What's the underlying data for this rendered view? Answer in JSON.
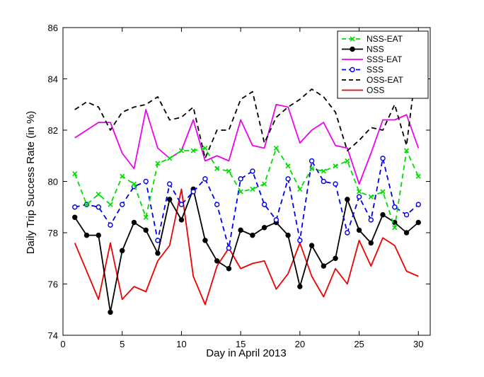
{
  "chart_data": {
    "type": "line",
    "title": "",
    "xlabel": "Day in April 2013",
    "ylabel": "Daily Trip Success Rate (in %)",
    "xlim": [
      0,
      31
    ],
    "ylim": [
      74,
      86
    ],
    "xticks": [
      0,
      5,
      10,
      15,
      20,
      25,
      30
    ],
    "yticks": [
      74,
      76,
      78,
      80,
      82,
      84,
      86
    ],
    "legend_position": "top-right",
    "x": [
      1,
      2,
      3,
      4,
      5,
      6,
      7,
      8,
      9,
      10,
      11,
      12,
      13,
      14,
      15,
      16,
      17,
      18,
      19,
      20,
      21,
      22,
      23,
      24,
      25,
      26,
      27,
      28,
      29,
      30
    ],
    "series": [
      {
        "name": "NSS-EAT",
        "color": "#00dd00",
        "dash": "dash",
        "marker": "x",
        "values": [
          80.3,
          79.1,
          79.5,
          79.1,
          80.2,
          79.9,
          78.6,
          80.7,
          80.9,
          81.2,
          81.2,
          81.3,
          80.5,
          80.4,
          79.6,
          79.7,
          79.9,
          81.3,
          80.6,
          79.7,
          80.5,
          80.4,
          80.6,
          80.8,
          79.6,
          79.4,
          79.6,
          78.2,
          81.2,
          80.2
        ]
      },
      {
        "name": "NSS",
        "color": "#000000",
        "dash": "solid",
        "marker": "dot",
        "values": [
          78.6,
          77.9,
          77.9,
          74.9,
          77.3,
          78.4,
          78.1,
          77.2,
          79.3,
          78.5,
          79.7,
          77.7,
          76.9,
          76.6,
          78.1,
          77.9,
          78.2,
          78.4,
          77.9,
          75.9,
          77.5,
          76.7,
          77.0,
          79.3,
          78.1,
          77.6,
          78.7,
          78.4,
          78.0,
          78.4
        ]
      },
      {
        "name": "SSS-EAT",
        "color": "#ee00ee",
        "dash": "solid",
        "marker": "none",
        "values": [
          81.7,
          82.0,
          82.3,
          82.3,
          81.1,
          80.5,
          82.8,
          81.3,
          80.9,
          81.2,
          82.4,
          80.8,
          81.0,
          80.8,
          82.4,
          81.4,
          81.3,
          83.0,
          82.9,
          81.5,
          82.0,
          82.3,
          81.4,
          81.3,
          79.9,
          81.1,
          82.4,
          82.4,
          82.6,
          81.3
        ]
      },
      {
        "name": "SSS",
        "color": "#0000ee",
        "dash": "dash",
        "marker": "circle",
        "values": [
          79.0,
          79.1,
          79.0,
          78.3,
          79.1,
          79.8,
          80.0,
          77.7,
          79.9,
          79.1,
          79.6,
          80.1,
          79.1,
          77.4,
          80.1,
          80.4,
          79.1,
          78.5,
          80.1,
          77.7,
          80.8,
          80.0,
          79.9,
          78.0,
          79.4,
          78.5,
          80.9,
          79.0,
          78.7,
          79.1
        ]
      },
      {
        "name": "OSS-EAT",
        "color": "#000000",
        "dash": "dash",
        "marker": "none",
        "values": [
          82.8,
          83.1,
          82.9,
          82.0,
          82.7,
          82.9,
          83.0,
          83.3,
          82.4,
          82.5,
          82.9,
          80.9,
          82.0,
          82.0,
          83.2,
          83.5,
          81.5,
          82.5,
          82.9,
          83.2,
          83.6,
          83.3,
          82.7,
          81.2,
          81.6,
          82.1,
          82.0,
          83.0,
          81.4,
          85.1
        ]
      },
      {
        "name": "OSS",
        "color": "#ee0000",
        "dash": "solid",
        "marker": "none",
        "values": [
          77.6,
          76.5,
          75.4,
          77.6,
          75.4,
          75.9,
          75.7,
          76.9,
          77.5,
          79.7,
          76.3,
          75.2,
          76.7,
          77.4,
          76.6,
          76.8,
          76.9,
          75.8,
          76.4,
          77.6,
          76.3,
          75.5,
          76.6,
          76.0,
          77.7,
          76.7,
          77.8,
          77.5,
          76.5,
          76.3
        ]
      }
    ]
  }
}
